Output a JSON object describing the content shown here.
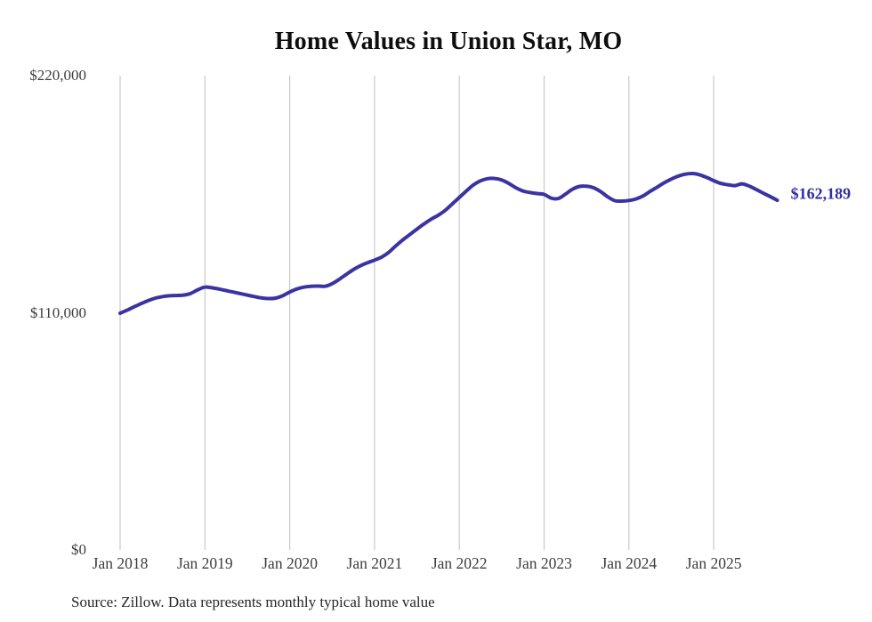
{
  "header": {
    "title": "Home Values in Union Star, MO"
  },
  "footer": {
    "source_note": "Source: Zillow. Data represents monthly typical home value"
  },
  "colors": {
    "background": "#ffffff",
    "line": "#3a34a3",
    "end_label": "#332f9e",
    "gridline": "#c9c9c9",
    "axis_text": "#3d3d3d",
    "title_text": "#0e0e0e"
  },
  "chart_data": {
    "type": "line",
    "title": "Home Values in Union Star, MO",
    "series_name": "Monthly typical home value",
    "frequency": "monthly",
    "x_start": "2018-01",
    "x_end": "2025-10",
    "x_tick_labels": [
      "Jan 2018",
      "Jan 2019",
      "Jan 2020",
      "Jan 2021",
      "Jan 2022",
      "Jan 2023",
      "Jan 2024",
      "Jan 2025"
    ],
    "y_ticks": [
      {
        "label": "$0",
        "value": 0
      },
      {
        "label": "$110,000",
        "value": 110000
      },
      {
        "label": "$220,000",
        "value": 220000
      }
    ],
    "ylim": [
      0,
      220000
    ],
    "grid": "vertical-only",
    "legend": "none",
    "line_color": "#3a34a3",
    "last_value": 162189,
    "last_point_label": "$162,189",
    "monthly_values": [
      109800,
      111200,
      112800,
      114300,
      115700,
      116800,
      117500,
      117900,
      118000,
      118200,
      119000,
      120700,
      121900,
      121600,
      121000,
      120300,
      119600,
      118900,
      118200,
      117500,
      116900,
      116600,
      116800,
      117900,
      119600,
      121000,
      121900,
      122300,
      122400,
      122300,
      123500,
      125500,
      127800,
      130000,
      131800,
      133200,
      134400,
      135800,
      138000,
      141000,
      143800,
      146300,
      148800,
      151200,
      153400,
      155200,
      157500,
      160500,
      163500,
      166500,
      169300,
      171200,
      172200,
      172300,
      171600,
      170000,
      168000,
      166500,
      165800,
      165300,
      164900,
      163200,
      163000,
      165000,
      167300,
      168600,
      168700,
      168000,
      166200,
      163800,
      162000,
      161800,
      162100,
      162800,
      164200,
      166300,
      168300,
      170300,
      172000,
      173400,
      174300,
      174600,
      174000,
      172800,
      171300,
      170000,
      169400,
      169000,
      169800,
      168800,
      167200,
      165500,
      163900,
      162189
    ]
  }
}
